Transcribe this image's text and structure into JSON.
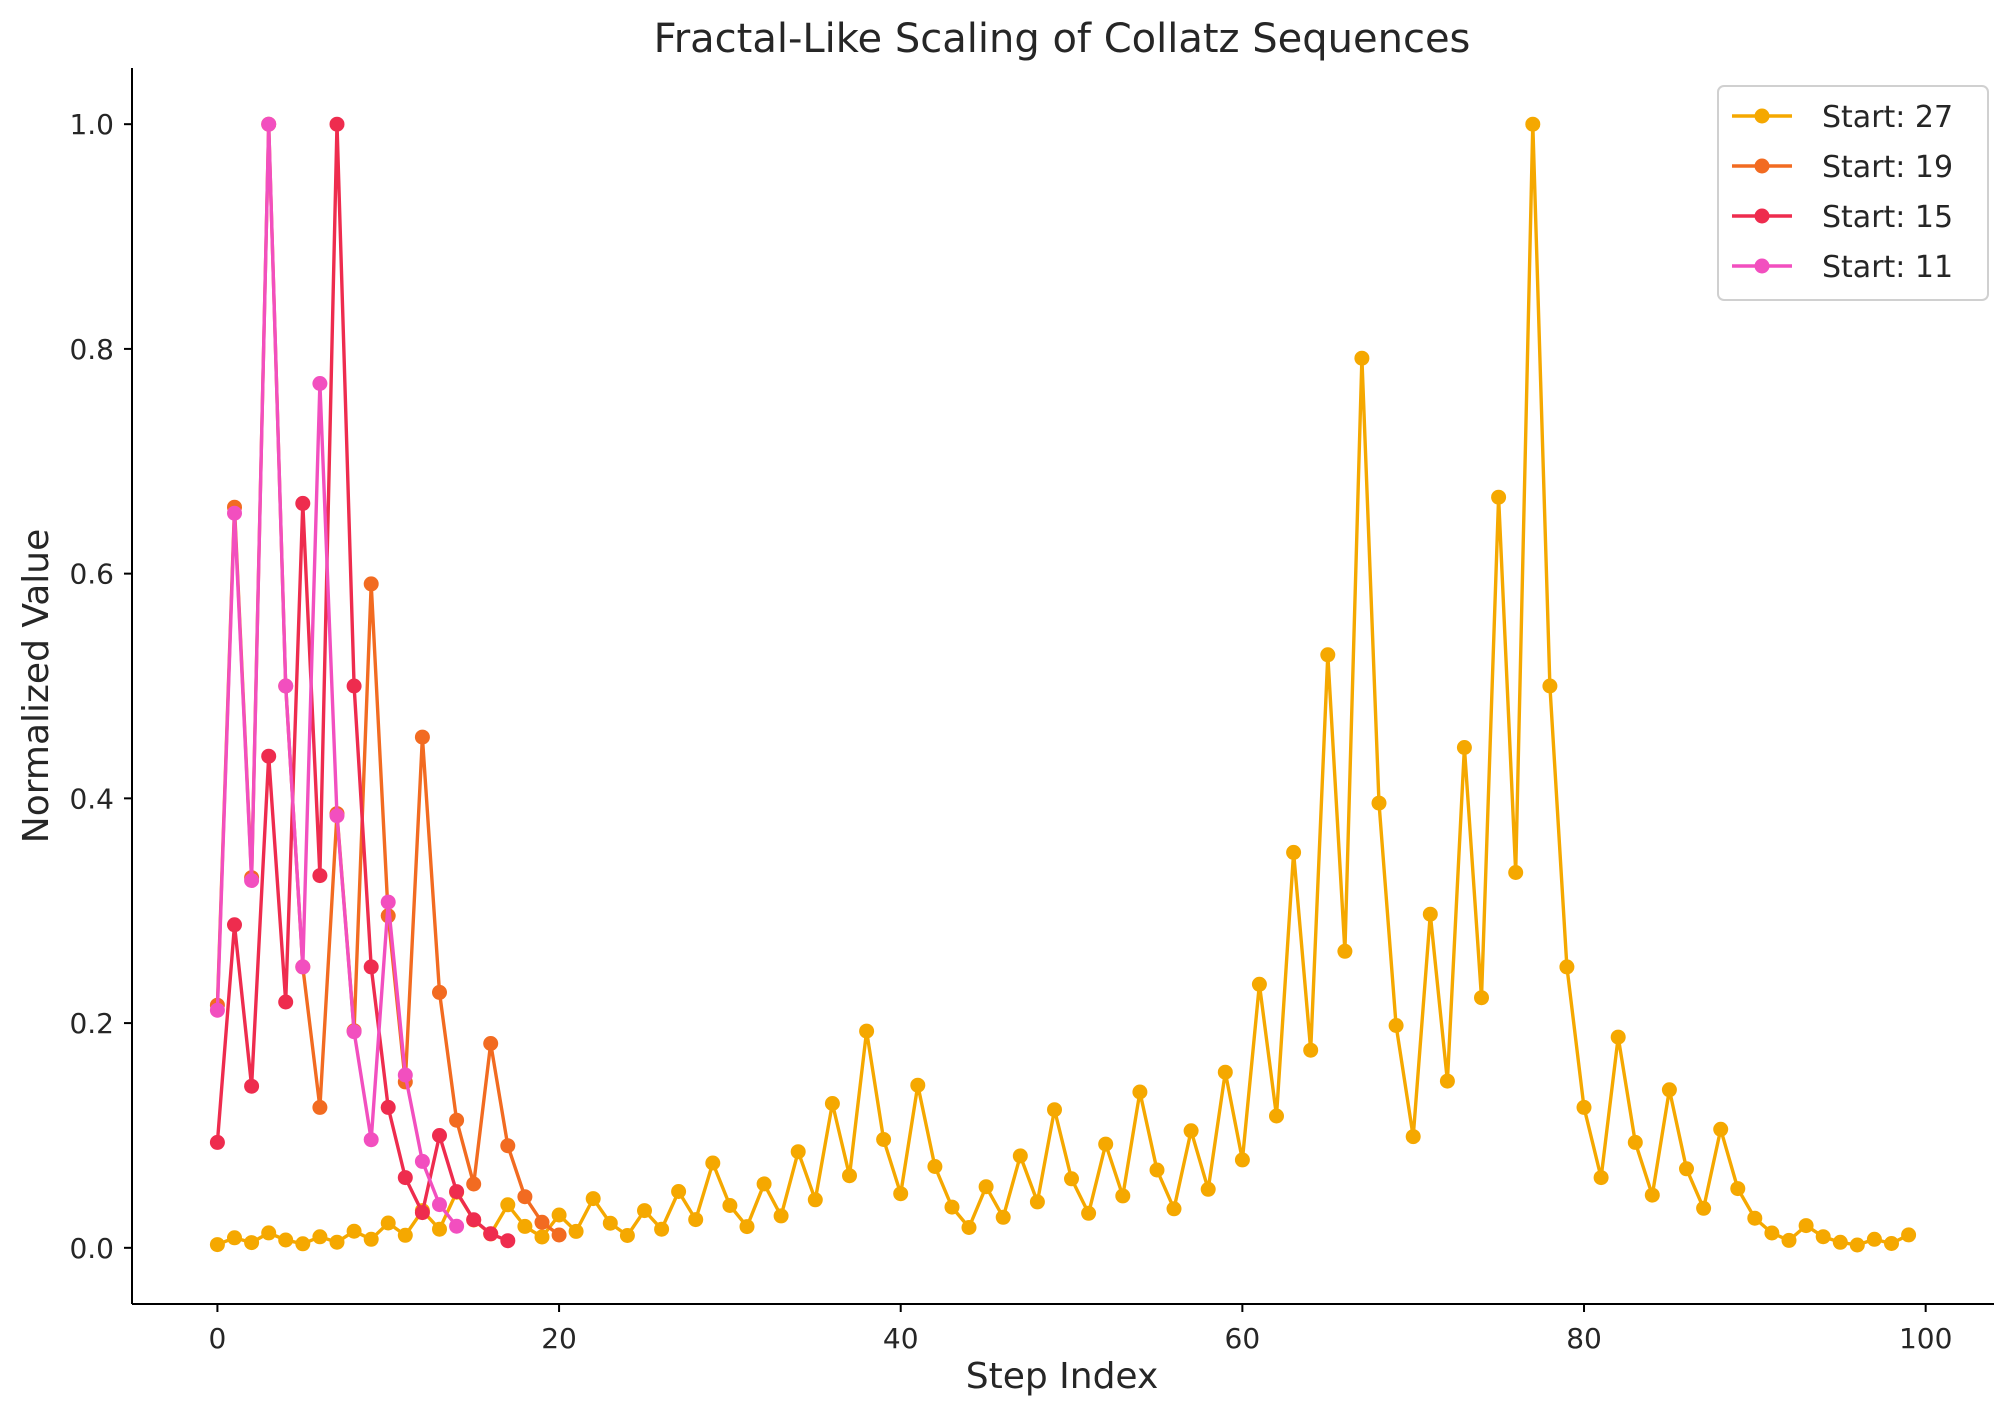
{
  "chart_data": {
    "type": "line",
    "title": "Fractal-Like Scaling of Collatz Sequences",
    "xlabel": "Step Index",
    "ylabel": "Normalized Value",
    "xlim": [
      -5,
      104
    ],
    "ylim": [
      -0.05,
      1.05
    ],
    "xticks": [
      0,
      20,
      40,
      60,
      80,
      100
    ],
    "yticks": [
      0.0,
      0.2,
      0.4,
      0.6,
      0.8,
      1.0
    ],
    "xtick_labels": [
      "0",
      "20",
      "40",
      "60",
      "80",
      "100"
    ],
    "ytick_labels": [
      "0.0",
      "0.2",
      "0.4",
      "0.6",
      "0.8",
      "1.0"
    ],
    "grid": false,
    "legend_position": "top-right",
    "series": [
      {
        "name": "Start: 27",
        "color": "#F5A800",
        "values": [
          0.0029,
          0.0089,
          0.0046,
          0.0133,
          0.007,
          0.0036,
          0.0098,
          0.005,
          0.0148,
          0.0076,
          0.0221,
          0.0111,
          0.0331,
          0.0166,
          0.0495,
          0.0248,
          0.0124,
          0.0383,
          0.0191,
          0.0096,
          0.0292,
          0.0146,
          0.0438,
          0.0219,
          0.011,
          0.0331,
          0.0166,
          0.0501,
          0.0251,
          0.0755,
          0.0377,
          0.0189,
          0.0569,
          0.0284,
          0.0855,
          0.0427,
          0.1284,
          0.0642,
          0.1929,
          0.0964,
          0.0482,
          0.1447,
          0.0724,
          0.0362,
          0.0181,
          0.0544,
          0.0272,
          0.0818,
          0.0409,
          0.1229,
          0.0614,
          0.0307,
          0.0923,
          0.0462,
          0.1387,
          0.0693,
          0.0347,
          0.1041,
          0.0521,
          0.1563,
          0.0782,
          0.2345,
          0.1173,
          0.3519,
          0.1759,
          0.5278,
          0.2639,
          0.7917,
          0.3958,
          0.1979,
          0.099,
          0.2969,
          0.1484,
          0.4453,
          0.2226,
          0.668,
          0.334,
          1.0,
          0.5,
          0.25,
          0.125,
          0.0625,
          0.1875,
          0.0938,
          0.0469,
          0.1406,
          0.0703,
          0.0352,
          0.1055,
          0.0527,
          0.0264,
          0.0132,
          0.0066,
          0.0198,
          0.0099,
          0.0049,
          0.0025,
          0.0076,
          0.0038,
          0.0115
        ]
      },
      {
        "name": "Start: 19",
        "color": "#F26B21",
        "values": [
          0.2159,
          0.6591,
          0.3295,
          1.0,
          0.5,
          0.25,
          0.125,
          0.3864,
          0.1932,
          0.5909,
          0.2955,
          0.1477,
          0.4545,
          0.2273,
          0.1136,
          0.0568,
          0.1818,
          0.0909,
          0.0455,
          0.0227,
          0.0114
        ]
      },
      {
        "name": "Start: 15",
        "color": "#EE2C4E",
        "values": [
          0.0938,
          0.2875,
          0.1438,
          0.4375,
          0.2188,
          0.6625,
          0.3313,
          1.0,
          0.5,
          0.25,
          0.125,
          0.0625,
          0.0313,
          0.1,
          0.05,
          0.025,
          0.0125,
          0.0063
        ]
      },
      {
        "name": "Start: 11",
        "color": "#F24FBF",
        "values": [
          0.2115,
          0.6538,
          0.3269,
          1.0,
          0.5,
          0.25,
          0.7692,
          0.3846,
          0.1923,
          0.0962,
          0.3077,
          0.1538,
          0.0769,
          0.0385,
          0.0192
        ]
      }
    ]
  }
}
